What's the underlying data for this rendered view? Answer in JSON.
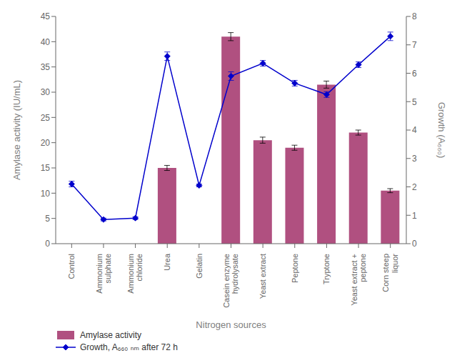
{
  "chart_data": {
    "type": "bar",
    "xlabel": "Nitrogen sources",
    "ylabel": "Amylase activity (IU/mL)",
    "y2label": "Growth (A₆₆₀)",
    "categories": [
      "Control",
      "Ammonium\nsulphate",
      "Ammonium\nchloride",
      "Urea",
      "Gelatin",
      "Casein enzyme\nhydrolysate",
      "Yeast extract",
      "Peptone",
      "Tryptone",
      "Yeast extract +\npeptone",
      "Corn steep\nliquor"
    ],
    "series": [
      {
        "name": "Amylase activity",
        "type": "bar",
        "color": "#b05080",
        "values": [
          0.0,
          0.0,
          0.0,
          15.0,
          0.0,
          41.0,
          20.5,
          19.0,
          31.5,
          22.0,
          10.5
        ],
        "errors": [
          0.0,
          0.0,
          0.0,
          0.5,
          0.0,
          0.8,
          0.6,
          0.5,
          0.7,
          0.5,
          0.4
        ]
      },
      {
        "name": "Growth, A₆₆₀ ₙₘ after 72 h",
        "type": "line",
        "axis": "y2",
        "color": "#0000cc",
        "marker": "diamond",
        "values": [
          2.1,
          0.85,
          0.9,
          6.6,
          2.05,
          5.9,
          6.35,
          5.65,
          5.25,
          6.3,
          7.3
        ],
        "errors": [
          0.1,
          0.05,
          0.05,
          0.15,
          0.05,
          0.15,
          0.1,
          0.1,
          0.1,
          0.1,
          0.15
        ]
      }
    ],
    "ylim": [
      0,
      45
    ],
    "yticks": [
      0,
      5,
      10,
      15,
      20,
      25,
      30,
      35,
      40,
      45
    ],
    "y2lim": [
      0,
      8
    ],
    "y2ticks": [
      0,
      1,
      2,
      3,
      4,
      5,
      6,
      7,
      8
    ],
    "grid": false,
    "legend": "lower left"
  }
}
